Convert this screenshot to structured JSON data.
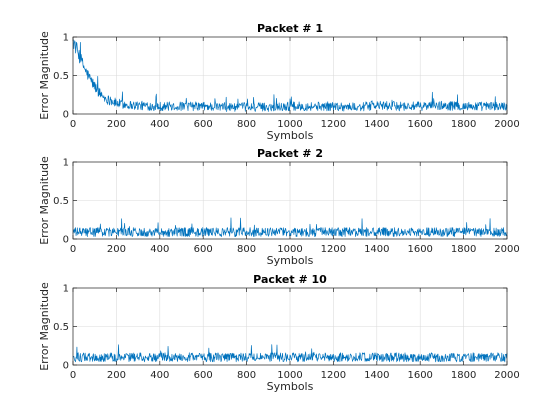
{
  "colors": {
    "line": "#0072BD",
    "grid": "#dcdcdc",
    "axis": "#262626",
    "background": "#ffffff"
  },
  "chart_data": [
    {
      "type": "line",
      "title": "Packet # 1",
      "xlabel": "Symbols",
      "ylabel": "Error Magnitude",
      "xlim": [
        0,
        2000
      ],
      "ylim": [
        0,
        1
      ],
      "xticks": [
        0,
        200,
        400,
        600,
        800,
        1000,
        1200,
        1400,
        1600,
        1800,
        2000
      ],
      "yticks": [
        0,
        0.5,
        1
      ],
      "ytick_labels": [
        "0",
        "0.5",
        "1"
      ],
      "grid": true,
      "series": [
        {
          "x": [
            0,
            20,
            40,
            60,
            80,
            100,
            120,
            150,
            200,
            250,
            300,
            400,
            500,
            600,
            700,
            800,
            900,
            1000,
            1100,
            1200,
            1300,
            1400,
            1500,
            1600,
            1700,
            1800,
            1900,
            2000
          ],
          "values": [
            0.95,
            0.82,
            0.68,
            0.55,
            0.45,
            0.36,
            0.28,
            0.2,
            0.14,
            0.12,
            0.11,
            0.1,
            0.1,
            0.1,
            0.09,
            0.09,
            0.09,
            0.1,
            0.1,
            0.1,
            0.09,
            0.11,
            0.1,
            0.1,
            0.11,
            0.1,
            0.1,
            0.1
          ],
          "noise_amplitude": 0.1
        }
      ]
    },
    {
      "type": "line",
      "title": "Packet # 2",
      "xlabel": "Symbols",
      "ylabel": "Error Magnitude",
      "xlim": [
        0,
        2000
      ],
      "ylim": [
        0,
        1
      ],
      "xticks": [
        0,
        200,
        400,
        600,
        800,
        1000,
        1200,
        1400,
        1600,
        1800,
        2000
      ],
      "yticks": [
        0,
        0.5,
        1
      ],
      "ytick_labels": [
        "0",
        "0.5",
        "1"
      ],
      "grid": true,
      "series": [
        {
          "x": [
            0,
            200,
            400,
            600,
            800,
            1000,
            1200,
            1400,
            1600,
            1800,
            2000
          ],
          "values": [
            0.09,
            0.09,
            0.09,
            0.09,
            0.09,
            0.09,
            0.09,
            0.09,
            0.09,
            0.09,
            0.09
          ],
          "noise_amplitude": 0.1
        }
      ]
    },
    {
      "type": "line",
      "title": "Packet # 10",
      "xlabel": "Symbols",
      "ylabel": "Error Magnitude",
      "xlim": [
        0,
        2000
      ],
      "ylim": [
        0,
        1
      ],
      "xticks": [
        0,
        200,
        400,
        600,
        800,
        1000,
        1200,
        1400,
        1600,
        1800,
        2000
      ],
      "yticks": [
        0,
        0.5,
        1
      ],
      "ytick_labels": [
        "0",
        "0.5",
        "1"
      ],
      "grid": true,
      "series": [
        {
          "x": [
            0,
            200,
            400,
            600,
            800,
            1000,
            1200,
            1400,
            1600,
            1800,
            2000
          ],
          "values": [
            0.1,
            0.1,
            0.1,
            0.1,
            0.1,
            0.1,
            0.1,
            0.1,
            0.1,
            0.1,
            0.1
          ],
          "noise_amplitude": 0.1
        }
      ]
    }
  ]
}
